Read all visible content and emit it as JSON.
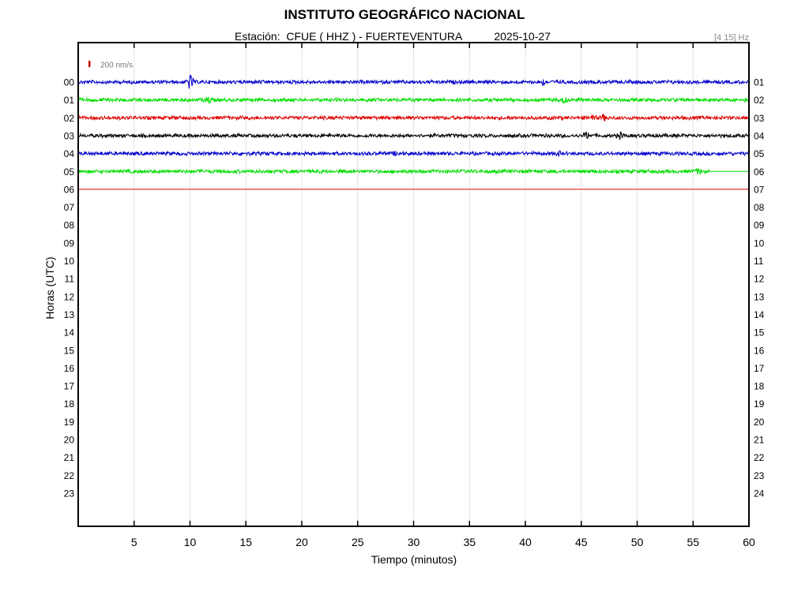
{
  "header": {
    "title": "INSTITUTO GEOGRÁFICO NACIONAL",
    "station_label": "Estación:",
    "station": "CFUE ( HHZ ) - FUERTEVENTURA",
    "date": "2025-10-27",
    "band": "[4 15] Hz"
  },
  "chart_data": {
    "type": "line",
    "xlabel": "Tiempo (minutos)",
    "ylabel": "Horas (UTC)",
    "xlim": [
      0,
      60
    ],
    "x_ticks": [
      5,
      10,
      15,
      20,
      25,
      30,
      35,
      40,
      45,
      50,
      55,
      60
    ],
    "grid": "vertical",
    "scale_label": "200 nm/s",
    "scale_color": "#cc0000",
    "left_labels": [
      "00",
      "01",
      "02",
      "03",
      "04",
      "05",
      "06",
      "07",
      "08",
      "09",
      "10",
      "11",
      "12",
      "13",
      "14",
      "15",
      "16",
      "17",
      "18",
      "19",
      "20",
      "21",
      "22",
      "23"
    ],
    "right_labels": [
      "01",
      "02",
      "03",
      "04",
      "05",
      "06",
      "07",
      "08",
      "09",
      "10",
      "11",
      "12",
      "13",
      "14",
      "15",
      "16",
      "17",
      "18",
      "19",
      "20",
      "21",
      "22",
      "23",
      "24"
    ],
    "colors": [
      "#0000cc",
      "#00dd00",
      "#dd0000",
      "#000000"
    ],
    "series": [
      {
        "hour": "00",
        "color": "#0000cc",
        "start_min": 0,
        "end_min": 60,
        "amplitude": "normal",
        "events": [
          {
            "minute": 10.0,
            "strength": 9
          },
          {
            "minute": 41.6,
            "strength": 3
          }
        ]
      },
      {
        "hour": "01",
        "color": "#00dd00",
        "start_min": 0,
        "end_min": 60,
        "amplitude": "normal",
        "events": [
          {
            "minute": 11.7,
            "strength": 3
          },
          {
            "minute": 43.5,
            "strength": 3
          }
        ]
      },
      {
        "hour": "02",
        "color": "#dd0000",
        "start_min": 0,
        "end_min": 60,
        "amplitude": "normal",
        "events": [
          {
            "minute": 46.0,
            "strength": 3
          },
          {
            "minute": 47.0,
            "strength": 3
          }
        ]
      },
      {
        "hour": "03",
        "color": "#000000",
        "start_min": 0,
        "end_min": 60,
        "amplitude": "normal",
        "events": [
          {
            "minute": 45.5,
            "strength": 4
          },
          {
            "minute": 48.5,
            "strength": 3
          }
        ]
      },
      {
        "hour": "04",
        "color": "#0000cc",
        "start_min": 0,
        "end_min": 60,
        "amplitude": "normal",
        "events": [
          {
            "minute": 28.5,
            "strength": 2
          },
          {
            "minute": 43.0,
            "strength": 2
          }
        ]
      },
      {
        "hour": "05",
        "color": "#00dd00",
        "start_min": 0,
        "end_min": 56.5,
        "amplitude": "normal",
        "events": [
          {
            "minute": 55.5,
            "strength": 3
          }
        ]
      },
      {
        "hour": "06",
        "color": "#dd0000",
        "start_min": 0,
        "end_min": 0,
        "amplitude": "flat",
        "events": []
      }
    ]
  }
}
